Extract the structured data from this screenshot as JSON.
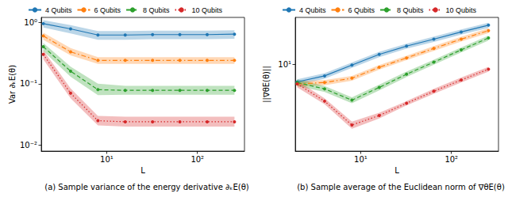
{
  "chart_data": [
    {
      "type": "line",
      "title": "(a) Sample variance of the energy derivative ∂ₖE(θ)",
      "x_label": "L",
      "y_label": "Var ∂ₖE(θ)",
      "log": true,
      "grid": false,
      "legend": "top",
      "xlim": [
        1.9,
        330
      ],
      "ylim": [
        0.008,
        1.2
      ],
      "xticks": [
        {
          "value": 10,
          "label": "10¹"
        },
        {
          "value": 100,
          "label": "10²"
        }
      ],
      "yticks": [
        {
          "value": 0.01,
          "label": "10⁻²"
        },
        {
          "value": 0.1,
          "label": "10⁻¹"
        },
        {
          "value": 1,
          "label": "10⁰"
        }
      ],
      "x": [
        2,
        4,
        8,
        16,
        32,
        64,
        128,
        256
      ],
      "series": [
        {
          "name": "4 Qubits",
          "color": "#1f77b4",
          "marker": "circle",
          "line_style": "solid",
          "values": [
            0.95,
            0.78,
            0.62,
            0.62,
            0.63,
            0.63,
            0.63,
            0.64
          ],
          "lower": [
            0.82,
            0.66,
            0.52,
            0.52,
            0.53,
            0.53,
            0.53,
            0.54
          ],
          "upper": [
            1.08,
            0.9,
            0.72,
            0.72,
            0.73,
            0.73,
            0.73,
            0.74
          ]
        },
        {
          "name": "6 Qubits",
          "color": "#ff7f0e",
          "marker": "circle",
          "line_style": "dashdot",
          "values": [
            0.6,
            0.33,
            0.24,
            0.24,
            0.24,
            0.24,
            0.24,
            0.24
          ],
          "lower": [
            0.52,
            0.29,
            0.21,
            0.21,
            0.21,
            0.21,
            0.21,
            0.21
          ],
          "upper": [
            0.68,
            0.38,
            0.27,
            0.27,
            0.27,
            0.27,
            0.27,
            0.27
          ]
        },
        {
          "name": "8 Qubits",
          "color": "#2ca02c",
          "marker": "circle",
          "line_style": "dashed",
          "values": [
            0.4,
            0.16,
            0.08,
            0.078,
            0.078,
            0.078,
            0.078,
            0.078
          ],
          "lower": [
            0.34,
            0.13,
            0.065,
            0.066,
            0.066,
            0.066,
            0.066,
            0.066
          ],
          "upper": [
            0.46,
            0.19,
            0.1,
            0.092,
            0.092,
            0.092,
            0.092,
            0.092
          ]
        },
        {
          "name": "10 Qubits",
          "color": "#d62728",
          "marker": "circle",
          "line_style": "dotted",
          "values": [
            0.3,
            0.07,
            0.025,
            0.024,
            0.024,
            0.024,
            0.024,
            0.024
          ],
          "lower": [
            0.25,
            0.058,
            0.021,
            0.02,
            0.02,
            0.02,
            0.02,
            0.02
          ],
          "upper": [
            0.35,
            0.084,
            0.03,
            0.029,
            0.029,
            0.029,
            0.029,
            0.029
          ]
        }
      ]
    },
    {
      "type": "line",
      "title": "(b) Sample average of the Euclidean norm of ∇θE(θ)",
      "x_label": "L",
      "y_label": "||∇θE(θ)||",
      "log": true,
      "grid": false,
      "legend": "top",
      "xlim": [
        1.9,
        330
      ],
      "ylim": [
        1.3,
        30
      ],
      "xticks": [
        {
          "value": 10,
          "label": "10¹"
        },
        {
          "value": 100,
          "label": "10²"
        }
      ],
      "yticks": [
        {
          "value": 10,
          "label": "10¹"
        }
      ],
      "x": [
        2,
        4,
        8,
        16,
        32,
        64,
        128,
        256
      ],
      "series": [
        {
          "name": "4 Qubits",
          "color": "#1f77b4",
          "marker": "circle",
          "line_style": "solid",
          "values": [
            6.6,
            7.6,
            9.8,
            12.6,
            15.3,
            18,
            21.3,
            25
          ],
          "lower": [
            6.2,
            7.1,
            9.2,
            11.8,
            14.4,
            16.9,
            20,
            23.5
          ],
          "upper": [
            7.0,
            8.1,
            10.4,
            13.4,
            16.2,
            19.1,
            22.6,
            26.5
          ]
        },
        {
          "name": "6 Qubits",
          "color": "#ff7f0e",
          "marker": "circle",
          "line_style": "dashdot",
          "values": [
            6.3,
            6.5,
            7.2,
            9.3,
            11.6,
            14.5,
            18,
            22
          ],
          "lower": [
            5.9,
            6.1,
            6.8,
            8.8,
            11,
            13.7,
            17,
            20.8
          ],
          "upper": [
            6.7,
            6.9,
            7.6,
            9.8,
            12.2,
            15.3,
            19,
            23.2
          ]
        },
        {
          "name": "8 Qubits",
          "color": "#2ca02c",
          "marker": "circle",
          "line_style": "dashed",
          "values": [
            6.5,
            5.6,
            4.3,
            5.8,
            7.9,
            10.5,
            14,
            18.5
          ],
          "lower": [
            6.0,
            5.2,
            4.0,
            5.4,
            7.4,
            9.9,
            13.2,
            17.4
          ],
          "upper": [
            7.0,
            6.0,
            4.6,
            6.2,
            8.4,
            11.1,
            14.8,
            19.6
          ]
        },
        {
          "name": "10 Qubits",
          "color": "#d62728",
          "marker": "circle",
          "line_style": "dotted",
          "values": [
            6.3,
            4.2,
            2.4,
            3.0,
            4.0,
            5.3,
            6.9,
            8.9
          ],
          "lower": [
            5.8,
            3.9,
            2.2,
            2.8,
            3.8,
            5.0,
            6.5,
            8.4
          ],
          "upper": [
            6.8,
            4.5,
            2.6,
            3.2,
            4.2,
            5.6,
            7.3,
            9.4
          ]
        }
      ]
    }
  ]
}
